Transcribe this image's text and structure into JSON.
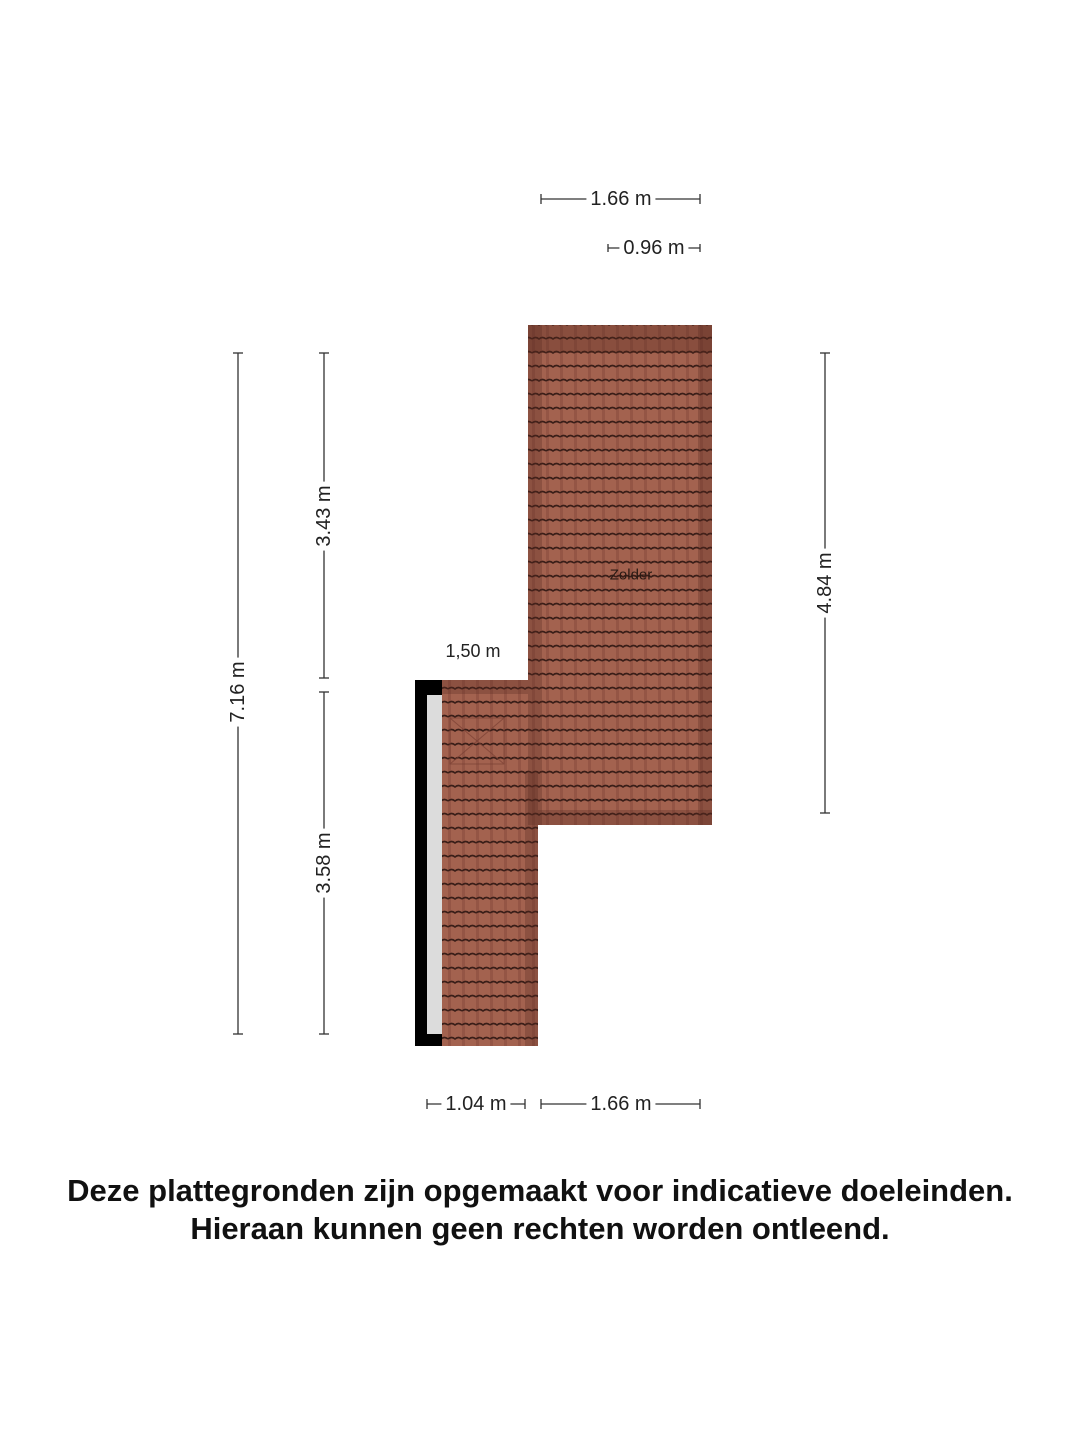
{
  "room": {
    "name": "Zolder"
  },
  "dimensions": {
    "top_width": "1.66 m",
    "top_inner": "0.96 m",
    "overall_height": "7.16 m",
    "upper_height": "3.43 m",
    "lower_height": "3.58 m",
    "right_height": "4.84 m",
    "step_width": "1,50 m",
    "bottom_left": "1.04 m",
    "bottom_right": "1.66 m"
  },
  "colors": {
    "roof_tile": "#a0604f",
    "tile_line": "#3a1e18",
    "wall": "#000000"
  },
  "disclaimer": {
    "line1": "Deze plattegronden zijn opgemaakt voor indicatieve doeleinden.",
    "line2": "Hieraan kunnen geen rechten worden ontleend."
  }
}
